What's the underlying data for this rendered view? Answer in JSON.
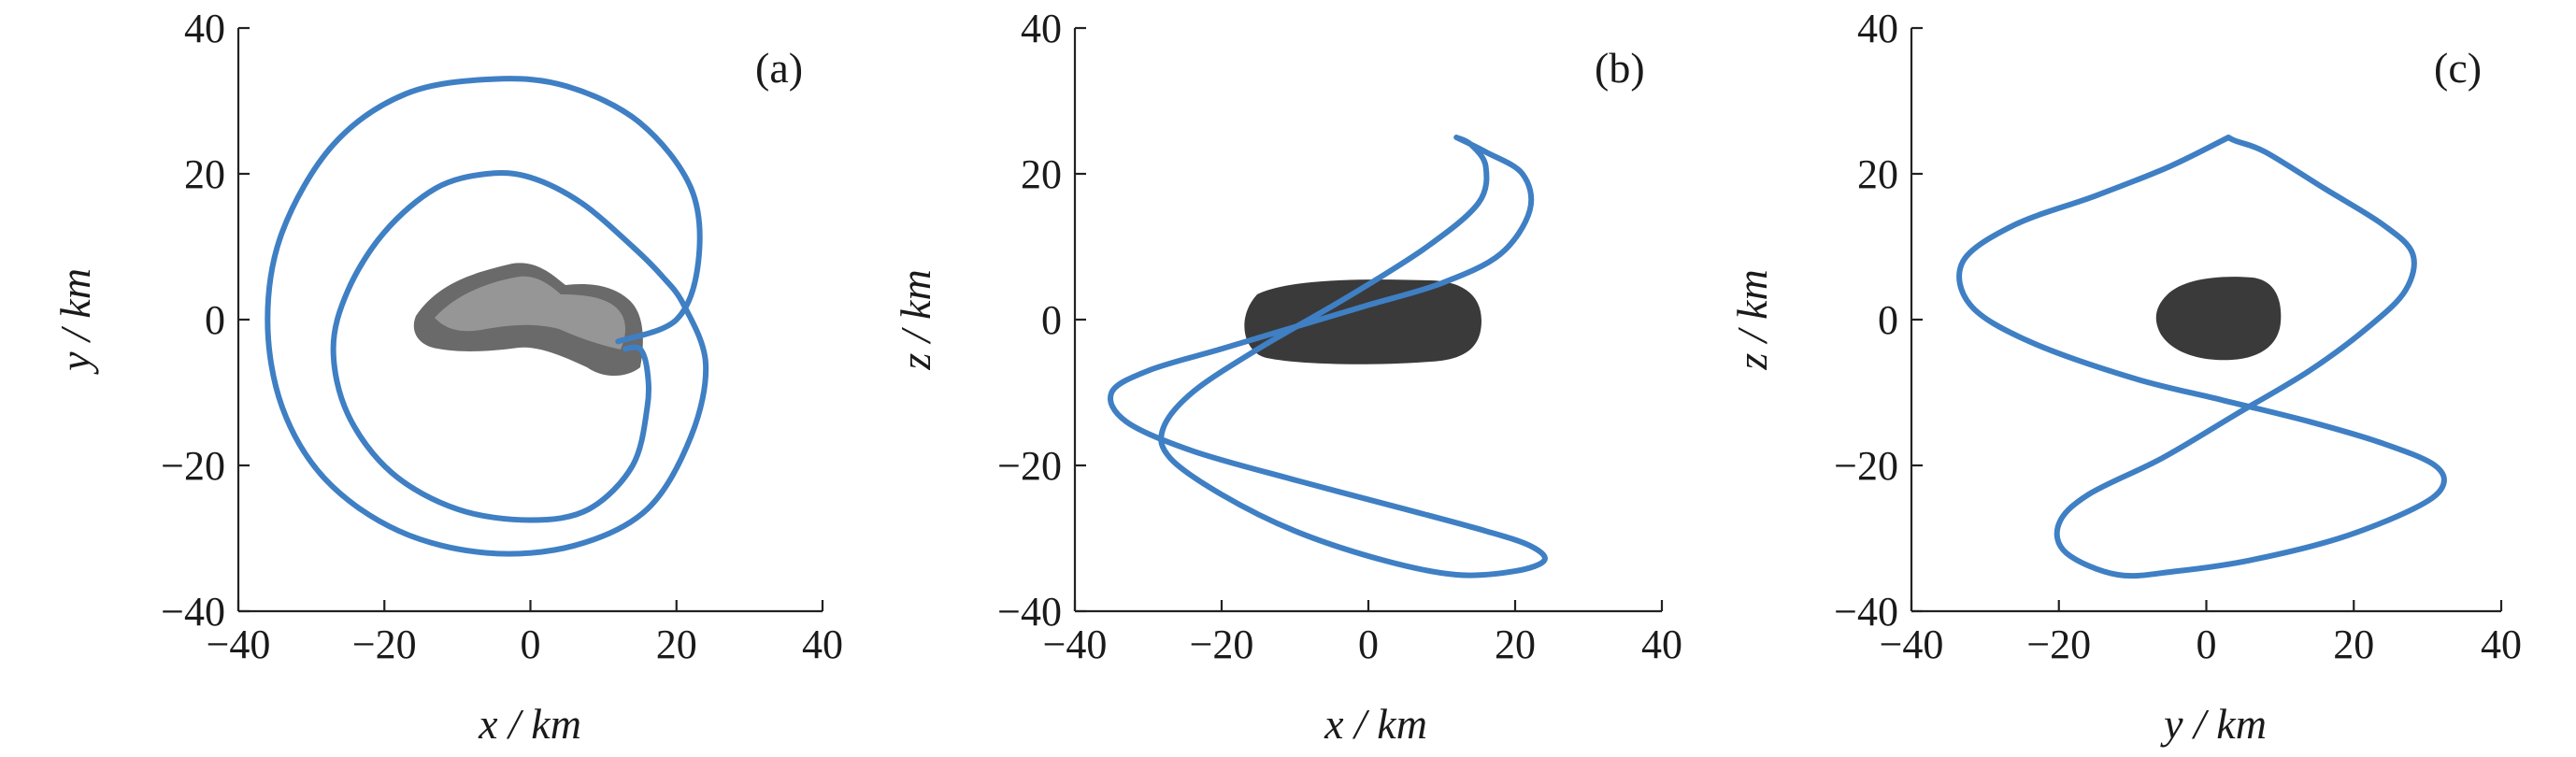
{
  "chart_data": [
    {
      "type": "line",
      "panel_label": "(a)",
      "xlabel": "x / km",
      "ylabel": "y / km",
      "xlim": [
        -40,
        40
      ],
      "ylim": [
        -40,
        40
      ],
      "xticks": [
        -40,
        -20,
        0,
        20,
        40
      ],
      "yticks": [
        -40,
        -20,
        0,
        20,
        40
      ],
      "grid": false,
      "series_color": "#3f7fc4",
      "body_color": "#6a6a6a",
      "trajectory": [
        [
          12,
          -3
        ],
        [
          20,
          0
        ],
        [
          23,
          8
        ],
        [
          22,
          18
        ],
        [
          15,
          27
        ],
        [
          5,
          32
        ],
        [
          -5,
          33
        ],
        [
          -17,
          31
        ],
        [
          -27,
          24
        ],
        [
          -34,
          12
        ],
        [
          -36,
          0
        ],
        [
          -34,
          -12
        ],
        [
          -28,
          -22
        ],
        [
          -18,
          -29
        ],
        [
          -6,
          -32
        ],
        [
          6,
          -31
        ],
        [
          16,
          -26
        ],
        [
          22,
          -16
        ],
        [
          24,
          -6
        ],
        [
          21,
          2
        ],
        [
          18,
          6
        ],
        [
          14,
          10
        ],
        [
          7,
          16
        ],
        [
          0,
          19.5
        ],
        [
          -6,
          20
        ],
        [
          -13,
          18
        ],
        [
          -20,
          12
        ],
        [
          -25,
          4
        ],
        [
          -27,
          -4
        ],
        [
          -25,
          -13
        ],
        [
          -19,
          -21
        ],
        [
          -10,
          -26
        ],
        [
          0,
          -27.5
        ],
        [
          8,
          -26
        ],
        [
          14,
          -20
        ],
        [
          16,
          -12
        ],
        [
          16,
          -7
        ],
        [
          15,
          -4
        ],
        [
          13,
          -4
        ]
      ]
    },
    {
      "type": "line",
      "panel_label": "(b)",
      "xlabel": "x / km",
      "ylabel": "z / km",
      "xlim": [
        -40,
        40
      ],
      "ylim": [
        -40,
        40
      ],
      "xticks": [
        -40,
        -20,
        0,
        20,
        40
      ],
      "yticks": [
        -40,
        -20,
        0,
        20,
        40
      ],
      "grid": false,
      "series_color": "#3f7fc4",
      "body_color": "#3a3a3a",
      "trajectory": [
        [
          12,
          25
        ],
        [
          16,
          23
        ],
        [
          21,
          20
        ],
        [
          22,
          15
        ],
        [
          18,
          9
        ],
        [
          10,
          5
        ],
        [
          0,
          2
        ],
        [
          -10,
          -1
        ],
        [
          -20,
          -4
        ],
        [
          -30,
          -7
        ],
        [
          -35,
          -10
        ],
        [
          -33,
          -14
        ],
        [
          -24,
          -18
        ],
        [
          -10,
          -22
        ],
        [
          5,
          -26
        ],
        [
          16,
          -29
        ],
        [
          22,
          -31
        ],
        [
          24,
          -33
        ],
        [
          20,
          -34.5
        ],
        [
          12,
          -35
        ],
        [
          2,
          -33
        ],
        [
          -10,
          -29
        ],
        [
          -20,
          -24
        ],
        [
          -27,
          -19
        ],
        [
          -28,
          -15
        ],
        [
          -24,
          -10
        ],
        [
          -15,
          -4
        ],
        [
          -3,
          3
        ],
        [
          8,
          10
        ],
        [
          15,
          16
        ],
        [
          16,
          21
        ],
        [
          14,
          24
        ],
        [
          12,
          25
        ]
      ]
    },
    {
      "type": "line",
      "panel_label": "(c)",
      "xlabel": "y / km",
      "ylabel": "z / km",
      "xlim": [
        -40,
        40
      ],
      "ylim": [
        -40,
        40
      ],
      "xticks": [
        -40,
        -20,
        0,
        20,
        40
      ],
      "yticks": [
        -40,
        -20,
        0,
        20,
        40
      ],
      "grid": false,
      "series_color": "#3f7fc4",
      "body_color": "#3a3a3a",
      "trajectory": [
        [
          3,
          25
        ],
        [
          -5,
          21
        ],
        [
          -15,
          17
        ],
        [
          -26,
          13
        ],
        [
          -33,
          8
        ],
        [
          -32,
          2
        ],
        [
          -24,
          -3
        ],
        [
          -10,
          -8
        ],
        [
          2,
          -11
        ],
        [
          14,
          -14
        ],
        [
          24,
          -17
        ],
        [
          31,
          -20
        ],
        [
          32,
          -23
        ],
        [
          28,
          -26
        ],
        [
          18,
          -30
        ],
        [
          6,
          -33
        ],
        [
          -4,
          -34.5
        ],
        [
          -12,
          -35
        ],
        [
          -19,
          -32
        ],
        [
          -20,
          -28
        ],
        [
          -16,
          -24
        ],
        [
          -6,
          -19
        ],
        [
          4,
          -13
        ],
        [
          14,
          -7
        ],
        [
          22,
          -1
        ],
        [
          27,
          4
        ],
        [
          28,
          9
        ],
        [
          24,
          13
        ],
        [
          16,
          18
        ],
        [
          8,
          23
        ],
        [
          4,
          24.5
        ],
        [
          3,
          25
        ]
      ]
    }
  ]
}
